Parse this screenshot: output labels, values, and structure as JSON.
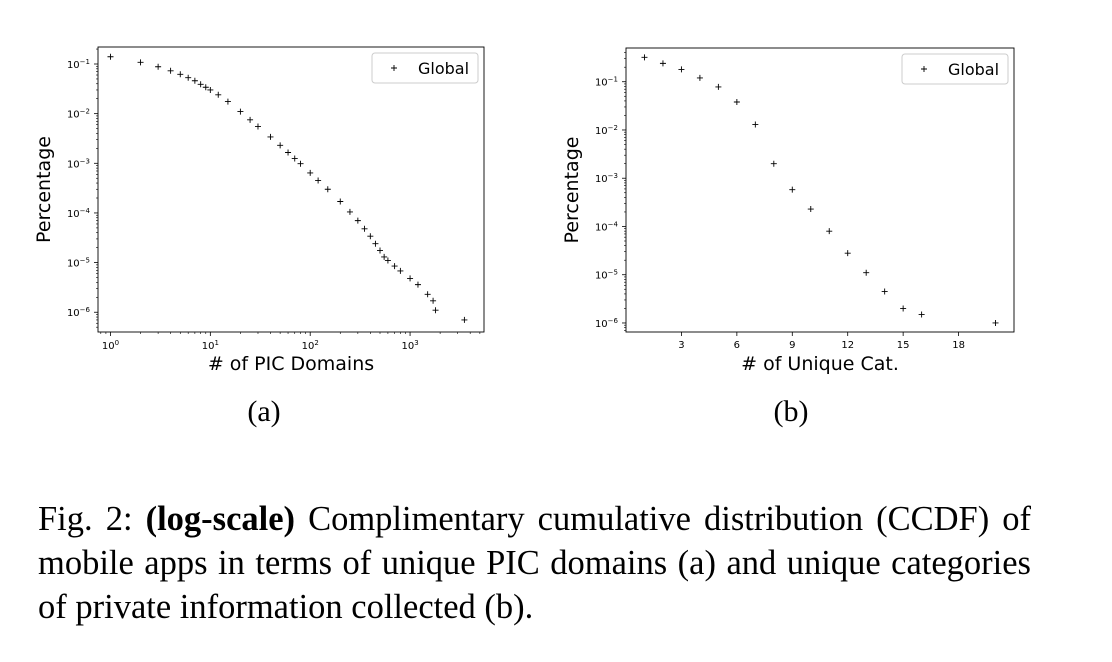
{
  "chart_data": [
    {
      "type": "scatter",
      "title": "",
      "xlabel": "# of PIC Domains",
      "ylabel": "Percentage",
      "xscale": "log",
      "yscale": "log",
      "xlim": [
        0.75,
        5500
      ],
      "ylim": [
        4e-07,
        0.22
      ],
      "x_ticks": [
        {
          "base": "10",
          "exp": "0",
          "value": 1
        },
        {
          "base": "10",
          "exp": "1",
          "value": 10
        },
        {
          "base": "10",
          "exp": "2",
          "value": 100
        },
        {
          "base": "10",
          "exp": "3",
          "value": 1000
        }
      ],
      "y_ticks": [
        {
          "base": "10",
          "exp": "−1",
          "value": 0.1
        },
        {
          "base": "10",
          "exp": "−2",
          "value": 0.01
        },
        {
          "base": "10",
          "exp": "−3",
          "value": 0.001
        },
        {
          "base": "10",
          "exp": "−4",
          "value": 0.0001
        },
        {
          "base": "10",
          "exp": "−5",
          "value": 1e-05
        },
        {
          "base": "10",
          "exp": "−6",
          "value": 1e-06
        }
      ],
      "legend": {
        "position": "top-right",
        "entries": [
          "Global"
        ]
      },
      "marker": "+",
      "grid": false,
      "series": [
        {
          "name": "Global",
          "points": [
            [
              1,
              0.14
            ],
            [
              2,
              0.108
            ],
            [
              3,
              0.088
            ],
            [
              4,
              0.073
            ],
            [
              5,
              0.062
            ],
            [
              6,
              0.053
            ],
            [
              7,
              0.046
            ],
            [
              8,
              0.039
            ],
            [
              9,
              0.034
            ],
            [
              10,
              0.03
            ],
            [
              12,
              0.024
            ],
            [
              15,
              0.0175
            ],
            [
              20,
              0.011
            ],
            [
              25,
              0.0075
            ],
            [
              30,
              0.0055
            ],
            [
              40,
              0.0034
            ],
            [
              50,
              0.0023
            ],
            [
              60,
              0.00165
            ],
            [
              70,
              0.00125
            ],
            [
              80,
              0.00098
            ],
            [
              100,
              0.00064
            ],
            [
              120,
              0.00045
            ],
            [
              150,
              0.0003
            ],
            [
              200,
              0.00017
            ],
            [
              250,
              0.000105
            ],
            [
              300,
              7e-05
            ],
            [
              350,
              4.8e-05
            ],
            [
              400,
              3.4e-05
            ],
            [
              450,
              2.4e-05
            ],
            [
              500,
              1.75e-05
            ],
            [
              550,
              1.3e-05
            ],
            [
              600,
              1.1e-05
            ],
            [
              700,
              8.5e-06
            ],
            [
              800,
              6.8e-06
            ],
            [
              1000,
              4.8e-06
            ],
            [
              1200,
              3.6e-06
            ],
            [
              1500,
              2.3e-06
            ],
            [
              1700,
              1.7e-06
            ],
            [
              1800,
              1.1e-06
            ],
            [
              3500,
              7e-07
            ]
          ]
        }
      ]
    },
    {
      "type": "scatter",
      "title": "",
      "xlabel": "# of Unique Cat.",
      "ylabel": "Percentage",
      "xscale": "linear",
      "yscale": "log",
      "xlim": [
        0,
        21
      ],
      "ylim": [
        6.5e-07,
        0.5
      ],
      "x_ticks": [
        3,
        6,
        9,
        12,
        15,
        18
      ],
      "y_ticks": [
        {
          "base": "10",
          "exp": "−1",
          "value": 0.1
        },
        {
          "base": "10",
          "exp": "−2",
          "value": 0.01
        },
        {
          "base": "10",
          "exp": "−3",
          "value": 0.001
        },
        {
          "base": "10",
          "exp": "−4",
          "value": 0.0001
        },
        {
          "base": "10",
          "exp": "−5",
          "value": 1e-05
        },
        {
          "base": "10",
          "exp": "−6",
          "value": 1e-06
        }
      ],
      "legend": {
        "position": "top-right",
        "entries": [
          "Global"
        ]
      },
      "marker": "+",
      "grid": false,
      "series": [
        {
          "name": "Global",
          "points": [
            [
              1,
              0.32
            ],
            [
              2,
              0.24
            ],
            [
              3,
              0.18
            ],
            [
              4,
              0.12
            ],
            [
              5,
              0.078
            ],
            [
              6,
              0.038
            ],
            [
              7,
              0.013
            ],
            [
              8,
              0.002
            ],
            [
              9,
              0.00058
            ],
            [
              10,
              0.00023
            ],
            [
              11,
              8e-05
            ],
            [
              12,
              2.8e-05
            ],
            [
              13,
              1.1e-05
            ],
            [
              14,
              4.5e-06
            ],
            [
              15,
              2e-06
            ],
            [
              16,
              1.5e-06
            ],
            [
              20,
              1e-06
            ]
          ]
        }
      ]
    }
  ],
  "sub_labels": [
    "(a)",
    "(b)"
  ],
  "caption": {
    "prefix": "Fig. 2: ",
    "bold": "(log-scale)",
    "text": " Complimentary cumulative distribution (CCDF) of mobile apps in terms of unique PIC domains (a) and unique categories of private information collected (b)."
  }
}
